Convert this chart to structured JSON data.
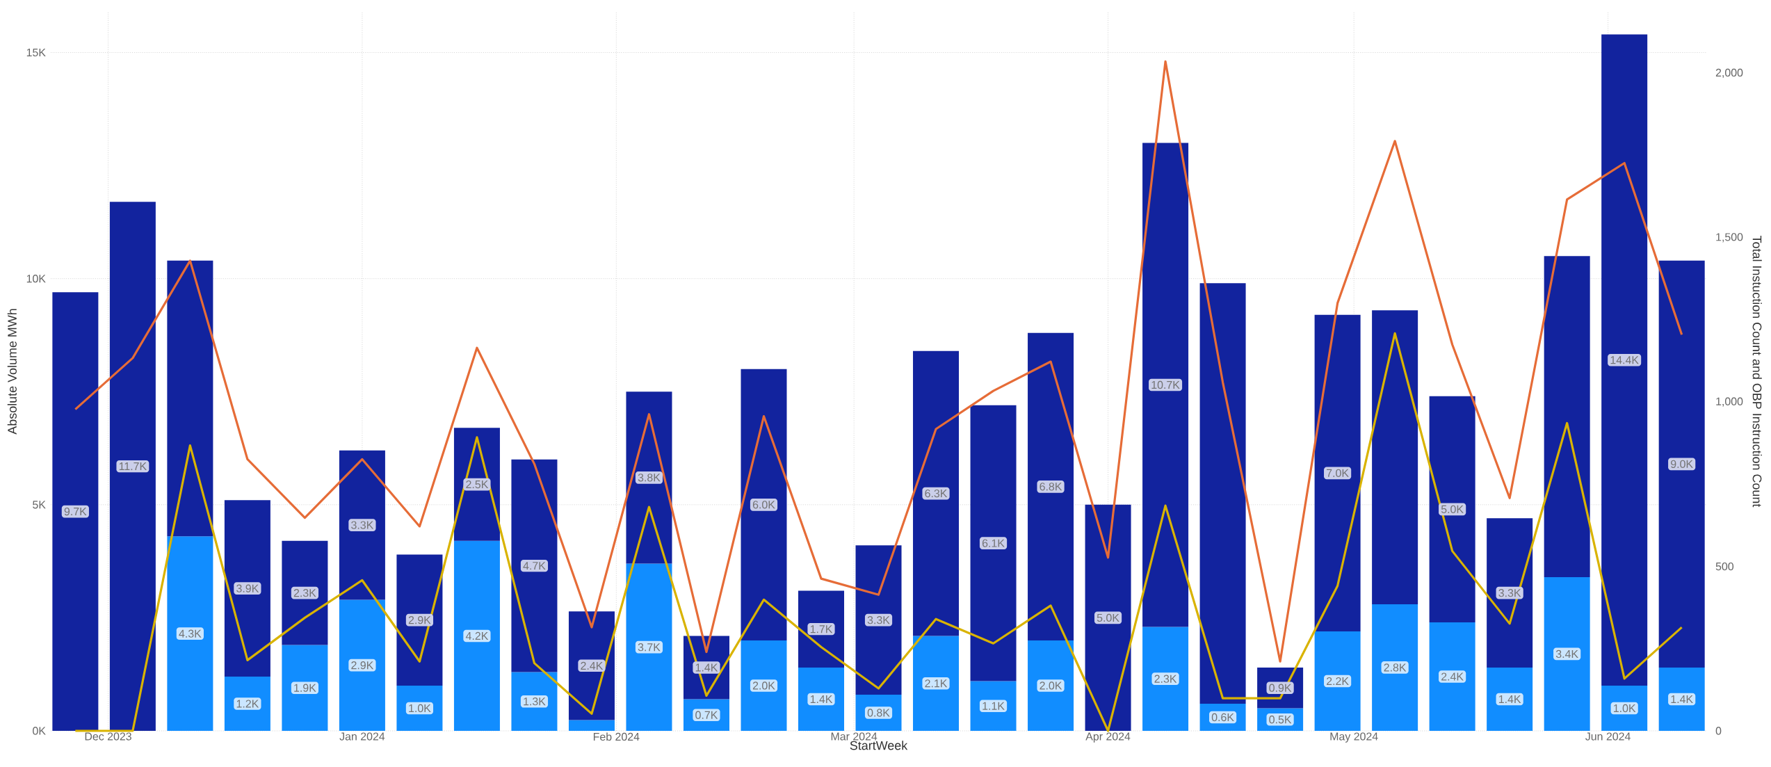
{
  "chart_data": {
    "type": "bar",
    "stacked": true,
    "grid": true,
    "xlabel": "StartWeek",
    "ylabel": "Absolute Volume MWh",
    "y2label": "Total Instuction Count and OBP Instruction Count",
    "x": [
      "2023-11-27",
      "2023-12-04",
      "2023-12-11",
      "2023-12-18",
      "2023-12-25",
      "2024-01-01",
      "2024-01-08",
      "2024-01-15",
      "2024-01-22",
      "2024-01-29",
      "2024-02-05",
      "2024-02-12",
      "2024-02-19",
      "2024-02-26",
      "2024-03-04",
      "2024-03-11",
      "2024-03-18",
      "2024-03-25",
      "2024-04-01",
      "2024-04-08",
      "2024-04-15",
      "2024-04-22",
      "2024-04-29",
      "2024-05-06",
      "2024-05-13",
      "2024-05-20",
      "2024-05-27",
      "2024-06-03",
      "2024-06-10"
    ],
    "xlim": [
      "2023-11-24",
      "2024-06-13"
    ],
    "xticks": [
      {
        "value": "2023-12-01",
        "label": "Dec 2023"
      },
      {
        "value": "2024-01-01",
        "label": "Jan 2024"
      },
      {
        "value": "2024-02-01",
        "label": "Feb 2024"
      },
      {
        "value": "2024-03-01",
        "label": "Mar 2024"
      },
      {
        "value": "2024-04-01",
        "label": "Apr 2024"
      },
      {
        "value": "2024-05-01",
        "label": "May 2024"
      },
      {
        "value": "2024-06-01",
        "label": "Jun 2024"
      }
    ],
    "ylim": [
      0,
      15900
    ],
    "yticks": [
      {
        "value": 0,
        "label": "0K"
      },
      {
        "value": 5000,
        "label": "5K"
      },
      {
        "value": 10000,
        "label": "10K"
      },
      {
        "value": 15000,
        "label": "15K"
      }
    ],
    "y2lim": [
      0,
      2187
    ],
    "y2ticks": [
      0,
      500,
      {
        "value": 1000,
        "label": "1,000"
      },
      {
        "value": 1500,
        "label": "1,500"
      },
      {
        "value": 2000,
        "label": "2,000"
      }
    ],
    "series": [
      {
        "color": "#118dff",
        "values": [
          null,
          null,
          4300,
          1200,
          1900,
          2900,
          1000,
          4200,
          1300,
          240,
          3700,
          700,
          2000,
          1400,
          800,
          2100,
          1100,
          2000,
          null,
          2300,
          600,
          500,
          2200,
          2800,
          2400,
          1400,
          3400,
          1000,
          1400
        ],
        "value_labels": [
          null,
          null,
          "4.3K",
          "1.2K",
          "1.9K",
          "2.9K",
          "1.0K",
          "4.2K",
          "1.3K",
          null,
          "3.7K",
          "0.7K",
          "2.0K",
          "1.4K",
          "0.8K",
          "2.1K",
          "1.1K",
          "2.0K",
          null,
          "2.3K",
          "0.6K",
          "0.5K",
          "2.2K",
          "2.8K",
          "2.4K",
          "1.4K",
          "3.4K",
          "1.0K",
          "1.4K"
        ]
      },
      {
        "color": "#12239e",
        "values": [
          9700,
          11700,
          6100,
          3900,
          2300,
          3300,
          2900,
          2500,
          4700,
          2400,
          3800,
          1400,
          6000,
          1700,
          3300,
          6300,
          6100,
          6800,
          5000,
          10700,
          9300,
          900,
          7000,
          6500,
          5000,
          3300,
          7100,
          14400,
          9000
        ],
        "value_labels": [
          "9.7K",
          "11.7K",
          null,
          "3.9K",
          "2.3K",
          "3.3K",
          "2.9K",
          "2.5K",
          "4.7K",
          "2.4K",
          "3.8K",
          "1.4K",
          "6.0K",
          "1.7K",
          "3.3K",
          "6.3K",
          "6.1K",
          "6.8K",
          "5.0K",
          "10.7K",
          null,
          "0.9K",
          "7.0K",
          null,
          "5.0K",
          "3.3K",
          null,
          "14.4K",
          "9.0K"
        ]
      },
      {
        "type": "line",
        "axis": "y2",
        "color": "#e66c37",
        "values": [
          978,
          1134,
          1430,
          826,
          648,
          826,
          622,
          1165,
          812,
          315,
          963,
          240,
          957,
          463,
          414,
          918,
          1034,
          1123,
          527,
          2036,
          1060,
          211,
          1301,
          1794,
          1175,
          708,
          1616,
          1727,
          1205
        ]
      },
      {
        "type": "line",
        "axis": "y2",
        "color": "#d9b300",
        "values": [
          0,
          0,
          868,
          215,
          344,
          458,
          211,
          893,
          206,
          52,
          681,
          107,
          399,
          255,
          129,
          340,
          266,
          381,
          0,
          685,
          99,
          99,
          441,
          1209,
          547,
          326,
          936,
          159,
          315
        ]
      }
    ]
  }
}
